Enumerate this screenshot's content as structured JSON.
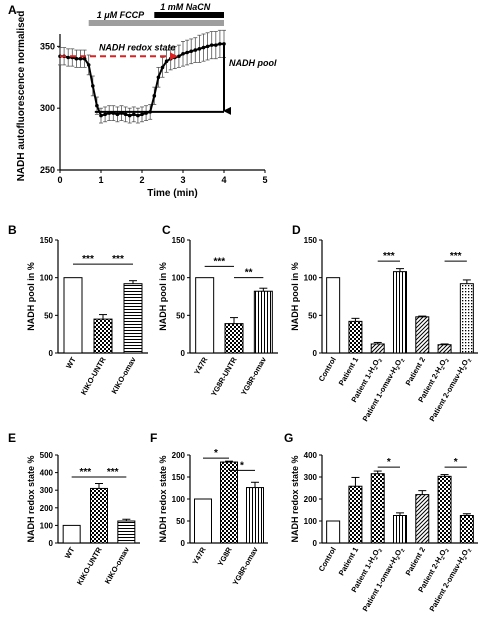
{
  "figure": {
    "panel_letters": [
      "A",
      "B",
      "C",
      "D",
      "E",
      "F",
      "G"
    ]
  },
  "chart_data": [
    {
      "panel": "A",
      "type": "line",
      "xlabel": "Time (min)",
      "ylabel": "NADH autofluorescence normalised",
      "xlim": [
        0,
        5
      ],
      "ylim": [
        250,
        360
      ],
      "xticks": [
        "0",
        "1",
        "2",
        "3",
        "4",
        "5"
      ],
      "yticks": [
        "250",
        "300",
        "350"
      ],
      "treatments": [
        {
          "label": "1 μM FCCP",
          "start": 0.7,
          "end": 4.0,
          "color": "#9e9e9e"
        },
        {
          "label": "1 mM NaCN",
          "start": 2.3,
          "end": 4.0,
          "color": "#000000"
        }
      ],
      "annotations": {
        "redox_state": "NADH redox state",
        "pool": "NADH pool"
      },
      "redox_line": {
        "y": 342,
        "x_start": 0.0,
        "x_end": 2.85
      },
      "pool_bracket": {
        "y_top": 352,
        "y_bottom": 297,
        "x": 4.0,
        "x_start": 0.85
      },
      "series": [
        {
          "x": [
            0.0,
            0.1,
            0.2,
            0.3,
            0.4,
            0.5,
            0.6,
            0.7,
            0.8,
            0.9,
            1.0,
            1.1,
            1.2,
            1.3,
            1.4,
            1.5,
            1.6,
            1.7,
            1.8,
            1.9,
            2.0,
            2.1,
            2.2,
            2.3,
            2.4,
            2.5,
            2.6,
            2.7,
            2.8,
            2.9,
            3.0,
            3.1,
            3.2,
            3.3,
            3.4,
            3.5,
            3.6,
            3.7,
            3.8,
            3.9,
            4.0
          ],
          "y": [
            342,
            342,
            341,
            341,
            340,
            340,
            340,
            335,
            318,
            302,
            294,
            295,
            296,
            296,
            295,
            296,
            295,
            294,
            295,
            294,
            295,
            296,
            297,
            310,
            325,
            333,
            338,
            340,
            341,
            342,
            344,
            345,
            346,
            347,
            348,
            349,
            350,
            351,
            351,
            352,
            352
          ],
          "err": [
            7,
            7,
            7,
            7,
            7,
            7,
            7,
            8,
            8,
            7,
            6,
            6,
            6,
            6,
            6,
            6,
            6,
            6,
            6,
            6,
            6,
            6,
            6,
            7,
            8,
            8,
            9,
            9,
            9,
            9,
            10,
            10,
            10,
            10,
            11,
            11,
            11,
            11,
            11,
            11,
            11
          ]
        }
      ]
    },
    {
      "panel": "B",
      "type": "bar",
      "ylabel": "NADH pool in %",
      "ylim": [
        0,
        150
      ],
      "yticks": [
        "0",
        "50",
        "100",
        "150"
      ],
      "categories": [
        "WT",
        "KIKO-UNTR",
        "KIKO-omav"
      ],
      "values": [
        100,
        45,
        92
      ],
      "errors": [
        0,
        6,
        4
      ],
      "patterns": [
        "white",
        "check",
        "hstripe"
      ],
      "significance": [
        {
          "from": 0,
          "to": 1,
          "label": "***",
          "y": 118
        },
        {
          "from": 1,
          "to": 2,
          "label": "***",
          "y": 118
        }
      ]
    },
    {
      "panel": "C",
      "type": "bar",
      "ylabel": "NADH pool in %",
      "ylim": [
        0,
        150
      ],
      "yticks": [
        "0",
        "50",
        "100",
        "150"
      ],
      "categories": [
        "Y47R",
        "YG8R-UNTR",
        "YG8R-omav"
      ],
      "values": [
        100,
        39,
        82
      ],
      "errors": [
        0,
        8,
        4
      ],
      "patterns": [
        "white",
        "check",
        "vstripe"
      ],
      "significance": [
        {
          "from": 0,
          "to": 1,
          "label": "***",
          "y": 115
        },
        {
          "from": 1,
          "to": 2,
          "label": "**",
          "y": 100
        }
      ]
    },
    {
      "panel": "D",
      "type": "bar",
      "ylabel": "NADH pool in %",
      "ylim": [
        0,
        150
      ],
      "yticks": [
        "0",
        "50",
        "100",
        "150"
      ],
      "categories": [
        "Control",
        "Patient 1",
        "Patient 1-H2O2",
        "Patient 1-omav-H2O2",
        "Patient 2",
        "Patient 2-H2O2",
        "Patient 2-omav-H2O2"
      ],
      "values": [
        100,
        42,
        12,
        108,
        48,
        11,
        92
      ],
      "errors": [
        0,
        4,
        2,
        4,
        1,
        1,
        5
      ],
      "patterns": [
        "white",
        "check",
        "diag",
        "vstripe",
        "diag",
        "diag",
        "dots"
      ],
      "significance": [
        {
          "from": 2,
          "to": 3,
          "label": "***",
          "y": 122
        },
        {
          "from": 5,
          "to": 6,
          "label": "***",
          "y": 122
        }
      ]
    },
    {
      "panel": "E",
      "type": "bar",
      "ylabel": "NADH redox state %",
      "ylim": [
        0,
        500
      ],
      "yticks": [
        "0",
        "100",
        "200",
        "300",
        "400",
        "500"
      ],
      "categories": [
        "WT",
        "KIKO-UNTR",
        "KIKO-omav"
      ],
      "values": [
        100,
        310,
        125
      ],
      "errors": [
        0,
        28,
        10
      ],
      "patterns": [
        "white",
        "check",
        "hstripe"
      ],
      "significance": [
        {
          "from": 0,
          "to": 1,
          "label": "***",
          "y": 375
        },
        {
          "from": 1,
          "to": 2,
          "label": "***",
          "y": 375
        }
      ]
    },
    {
      "panel": "F",
      "type": "bar",
      "ylabel": "NADH redox state %",
      "ylim": [
        0,
        200
      ],
      "yticks": [
        "0",
        "50",
        "100",
        "150",
        "200"
      ],
      "categories": [
        "Y47R",
        "YG8R",
        "YG8R-omav"
      ],
      "values": [
        100,
        184,
        126
      ],
      "errors": [
        0,
        2,
        12
      ],
      "patterns": [
        "white",
        "check",
        "vstripe"
      ],
      "significance": [
        {
          "from": 0,
          "to": 1,
          "label": "*",
          "y": 193
        },
        {
          "from": 1,
          "to": 2,
          "label": "*",
          "y": 165
        }
      ]
    },
    {
      "panel": "G",
      "type": "bar",
      "ylabel": "NADH redox state %",
      "ylim": [
        0,
        400
      ],
      "yticks": [
        "0",
        "100",
        "200",
        "300",
        "400"
      ],
      "categories": [
        "Control",
        "Patient 1",
        "Patient 1-H2O2",
        "Patient 1-omav-H2O2",
        "Patient 2",
        "Patient 2-H2O2",
        "Patient 2-omav-H2O2"
      ],
      "values": [
        100,
        258,
        315,
        125,
        220,
        303,
        125
      ],
      "errors": [
        0,
        40,
        12,
        12,
        18,
        8,
        8
      ],
      "patterns": [
        "white",
        "check",
        "check",
        "vstripe",
        "diag",
        "check",
        "check"
      ],
      "significance": [
        {
          "from": 2,
          "to": 3,
          "label": "*",
          "y": 345
        },
        {
          "from": 5,
          "to": 6,
          "label": "*",
          "y": 345
        }
      ]
    }
  ]
}
